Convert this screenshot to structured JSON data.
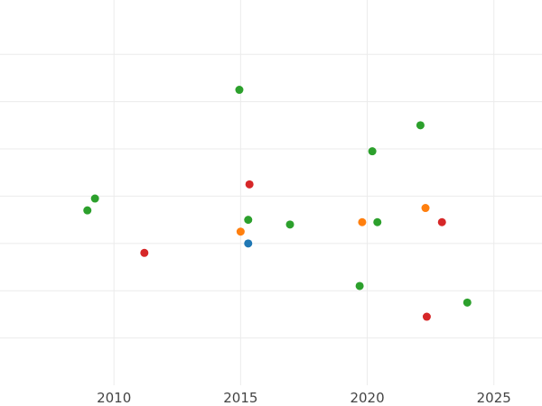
{
  "chart_data": {
    "type": "scatter",
    "title": "",
    "xlabel": "",
    "ylabel": "",
    "xlim": [
      2005.5,
      2026.9
    ],
    "ylim": [
      0.0,
      8.15
    ],
    "xticks": [
      2010,
      2015,
      2020,
      2025
    ],
    "xtick_labels": [
      "2010",
      "2015",
      "2020",
      "2025"
    ],
    "yticks": [
      1,
      2,
      3,
      4,
      5,
      6,
      7
    ],
    "grid": true,
    "legend": "none",
    "series": [
      {
        "color": "#1f77b4",
        "points": [
          {
            "x": 2015.3,
            "y": 3.0
          }
        ]
      },
      {
        "color": "#ff7f0e",
        "points": [
          {
            "x": 2015.0,
            "y": 3.25
          },
          {
            "x": 2019.8,
            "y": 3.45
          },
          {
            "x": 2022.3,
            "y": 3.75
          }
        ]
      },
      {
        "color": "#2ca02c",
        "points": [
          {
            "x": 2008.95,
            "y": 3.7
          },
          {
            "x": 2009.25,
            "y": 3.95
          },
          {
            "x": 2014.95,
            "y": 6.25
          },
          {
            "x": 2015.3,
            "y": 3.5
          },
          {
            "x": 2016.95,
            "y": 3.4
          },
          {
            "x": 2019.7,
            "y": 2.1
          },
          {
            "x": 2020.2,
            "y": 4.95
          },
          {
            "x": 2020.4,
            "y": 3.45
          },
          {
            "x": 2022.1,
            "y": 5.5
          },
          {
            "x": 2023.95,
            "y": 1.75
          }
        ]
      },
      {
        "color": "#d62728",
        "points": [
          {
            "x": 2011.2,
            "y": 2.8
          },
          {
            "x": 2015.35,
            "y": 4.25
          },
          {
            "x": 2022.35,
            "y": 1.45
          },
          {
            "x": 2022.95,
            "y": 3.45
          }
        ]
      }
    ]
  }
}
